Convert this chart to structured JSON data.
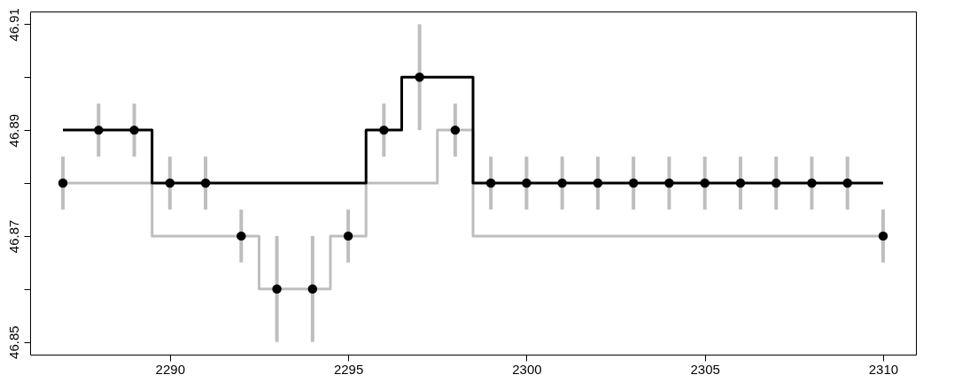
{
  "chart_data": {
    "type": "scatter",
    "x": [
      2287,
      2288,
      2289,
      2290,
      2291,
      2292,
      2293,
      2294,
      2295,
      2296,
      2297,
      2298,
      2299,
      2300,
      2301,
      2302,
      2303,
      2304,
      2305,
      2306,
      2307,
      2308,
      2309,
      2310
    ],
    "series": [
      {
        "type": "step",
        "color": "#bebebe",
        "values": [
          46.88,
          46.88,
          46.88,
          46.87,
          46.87,
          46.87,
          46.86,
          46.86,
          46.87,
          46.88,
          46.88,
          46.89,
          46.87,
          46.87,
          46.87,
          46.87,
          46.87,
          46.87,
          46.87,
          46.87,
          46.87,
          46.87,
          46.87,
          46.87
        ]
      },
      {
        "type": "step",
        "color": "#000000",
        "values": [
          46.89,
          46.89,
          46.89,
          46.88,
          46.88,
          46.88,
          46.88,
          46.88,
          46.88,
          46.89,
          46.9,
          46.9,
          46.88,
          46.88,
          46.88,
          46.88,
          46.88,
          46.88,
          46.88,
          46.88,
          46.88,
          46.88,
          46.88,
          46.88
        ]
      },
      {
        "marker": "circle",
        "color": "#000000",
        "values": [
          46.88,
          46.89,
          46.89,
          46.88,
          46.88,
          46.87,
          46.86,
          46.86,
          46.87,
          46.89,
          46.9,
          46.89,
          46.88,
          46.88,
          46.88,
          46.88,
          46.88,
          46.88,
          46.88,
          46.88,
          46.88,
          46.88,
          46.88,
          46.87
        ],
        "errors": [
          0.005,
          0.005,
          0.005,
          0.005,
          0.005,
          0.005,
          0.01,
          0.01,
          0.005,
          0.005,
          0.01,
          0.005,
          0.005,
          0.005,
          0.005,
          0.005,
          0.005,
          0.005,
          0.005,
          0.005,
          0.005,
          0.005,
          0.005,
          0.005
        ]
      }
    ],
    "xlim": [
      2286.08,
      2310.92
    ],
    "xticks": [
      2290,
      2295,
      2300,
      2305,
      2310
    ],
    "ylim": [
      46.8476,
      46.9124
    ],
    "yticks": [
      46.85,
      {
        "value": 46.86,
        "label": null
      },
      46.87,
      {
        "value": 46.88,
        "label": null
      },
      46.89,
      {
        "value": 46.9,
        "label": null
      },
      46.91
    ],
    "grid": false
  }
}
